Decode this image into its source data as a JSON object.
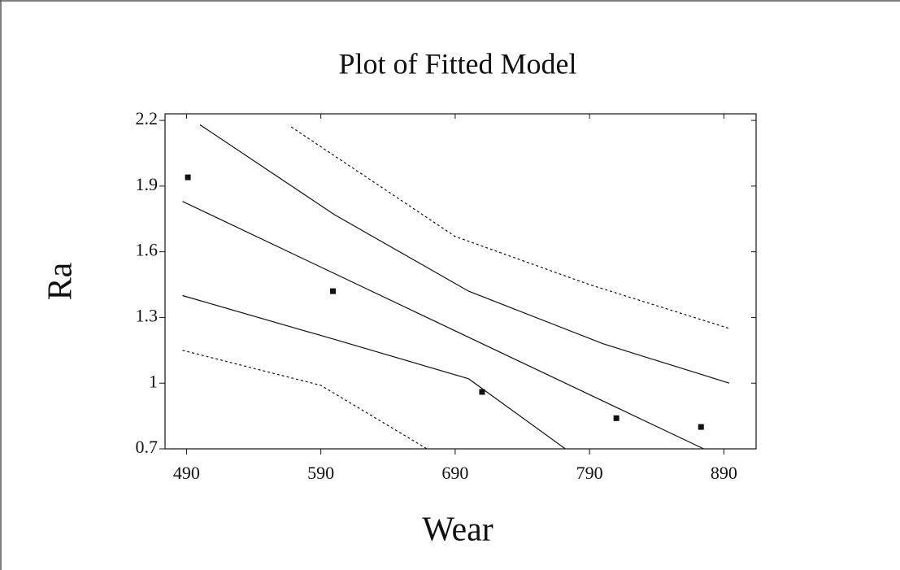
{
  "chart_data": {
    "type": "scatter",
    "title": "Plot of Fitted Model",
    "x_label": "Wear",
    "y_label": "Ra",
    "xlim": [
      474,
      914
    ],
    "ylim": [
      0.7,
      2.23
    ],
    "xticks": [
      490,
      590,
      690,
      790,
      890
    ],
    "yticks": [
      0.7,
      1,
      1.3,
      1.6,
      1.9,
      2.2
    ],
    "series": [
      {
        "mode": "markers",
        "color": "#111111",
        "x": [
          491,
          599,
          710,
          810,
          873
        ],
        "values": [
          1.94,
          1.42,
          0.96,
          0.84,
          0.8
        ]
      },
      {
        "mode": "line",
        "dash": false,
        "color": "#111111",
        "x": [
          487,
          875
        ],
        "values": [
          1.83,
          0.7
        ]
      },
      {
        "mode": "line",
        "dash": false,
        "color": "#111111",
        "x": [
          500,
          600,
          700,
          800,
          894
        ],
        "values": [
          2.18,
          1.77,
          1.42,
          1.18,
          1.0
        ]
      },
      {
        "mode": "line",
        "dash": false,
        "color": "#111111",
        "x": [
          487,
          600,
          700,
          772
        ],
        "values": [
          1.4,
          1.2,
          1.02,
          0.7
        ]
      },
      {
        "mode": "line",
        "dash": true,
        "color": "#111111",
        "x": [
          568,
          690,
          790,
          894
        ],
        "values": [
          2.17,
          1.67,
          1.45,
          1.25
        ]
      },
      {
        "mode": "line",
        "dash": true,
        "color": "#111111",
        "x": [
          487,
          590,
          669
        ],
        "values": [
          1.15,
          0.99,
          0.7
        ]
      }
    ]
  }
}
